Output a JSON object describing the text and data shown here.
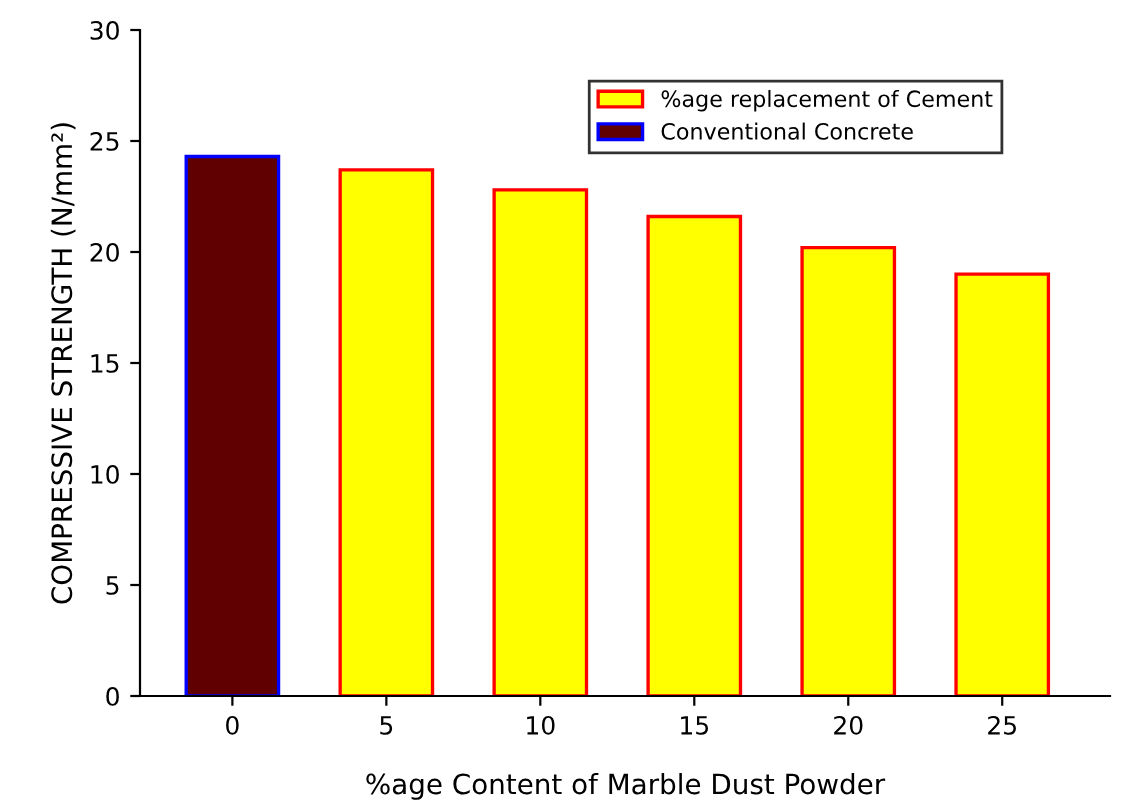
{
  "chart_data": {
    "type": "bar",
    "xlabel": "%age Content of Marble Dust Powder",
    "ylabel": "COMPRESSIVE STRENGTH (N/mm²)",
    "categories": [
      "0",
      "5",
      "10",
      "15",
      "20",
      "25"
    ],
    "series": [
      {
        "name": "%age replacement of Cement",
        "color": "#ffff00",
        "values": [
          null,
          23.7,
          22.8,
          21.6,
          20.2,
          19.0
        ]
      },
      {
        "name": "Conventional Concrete",
        "color": "#600000",
        "values": [
          24.3,
          null,
          null,
          null,
          null,
          null
        ]
      }
    ],
    "ylim": [
      0,
      30
    ],
    "yticks": [
      0,
      5,
      10,
      15,
      20,
      25,
      30
    ],
    "grid": false,
    "legend": "top right"
  }
}
